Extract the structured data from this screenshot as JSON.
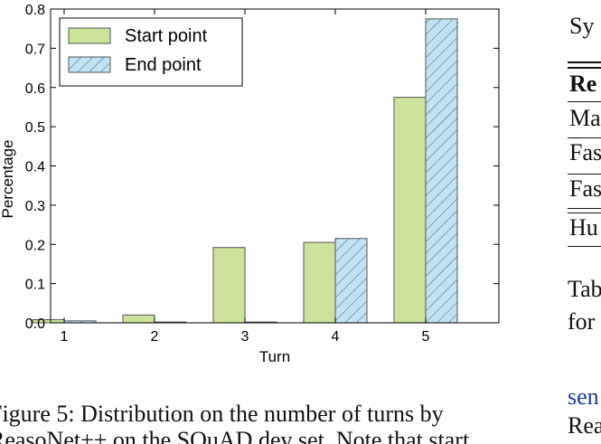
{
  "chart_data": {
    "type": "bar",
    "categories": [
      "1",
      "2",
      "3",
      "4",
      "5"
    ],
    "series": [
      {
        "name": "Start point",
        "values": [
          0.008,
          0.02,
          0.192,
          0.205,
          0.575
        ],
        "color": "#cde29a",
        "hatch": false
      },
      {
        "name": "End point",
        "values": [
          0.005,
          0.002,
          0.002,
          0.215,
          0.775
        ],
        "color": "#bfe3f4",
        "hatch": true
      }
    ],
    "xlabel": "Turn",
    "ylabel": "Percentage",
    "ylim": [
      0,
      0.8
    ],
    "yticks": [
      "0.0",
      "0.1",
      "0.2",
      "0.3",
      "0.4",
      "0.5",
      "0.6",
      "0.7",
      "0.8"
    ],
    "legend_position": "top-left",
    "grid": false
  },
  "caption": {
    "line1": "Figure 5:  Distribution on the number of turns by",
    "line2": "ReasoNet++ on the SQuAD dev set. Note that start"
  },
  "side_table": {
    "heading": "Sy",
    "rows": [
      "Re",
      "Ma",
      "Fas",
      "Fas",
      "Hu"
    ]
  },
  "side_text": {
    "line1": "Tab",
    "line2": "for",
    "line3": "sen",
    "line4": "Rea"
  }
}
